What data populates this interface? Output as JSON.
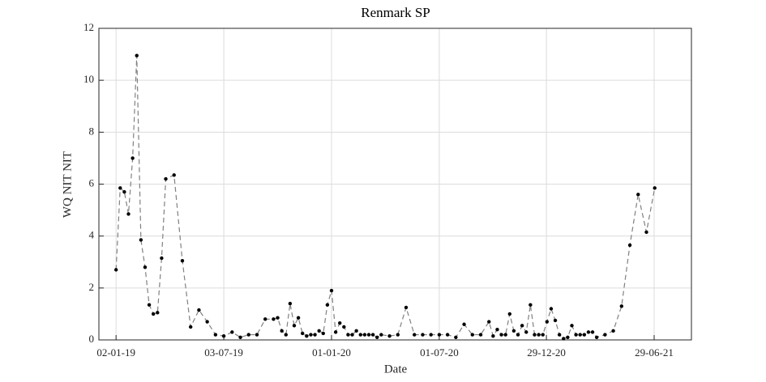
{
  "chart_data": {
    "type": "line",
    "title": "Renmark SP",
    "x_label": "Date",
    "y_label": "WQ NIT NIT",
    "x": [
      "02-01-19",
      "09-01-19",
      "16-01-19",
      "23-01-19",
      "30-01-19",
      "06-02-19",
      "13-02-19",
      "20-02-19",
      "27-02-19",
      "06-03-19",
      "13-03-19",
      "20-03-19",
      "27-03-19",
      "10-04-19",
      "24-04-19",
      "08-05-19",
      "22-05-19",
      "05-06-19",
      "19-06-19",
      "03-07-19",
      "17-07-19",
      "31-07-19",
      "14-08-19",
      "28-08-19",
      "11-09-19",
      "25-09-19",
      "02-10-19",
      "09-10-19",
      "16-10-19",
      "23-10-19",
      "30-10-19",
      "06-11-19",
      "13-11-19",
      "20-11-19",
      "27-11-19",
      "04-12-19",
      "11-12-19",
      "18-12-19",
      "25-12-19",
      "01-01-20",
      "08-01-20",
      "15-01-20",
      "22-01-20",
      "29-01-20",
      "05-02-20",
      "12-02-20",
      "19-02-20",
      "26-02-20",
      "04-03-20",
      "11-03-20",
      "18-03-20",
      "25-03-20",
      "08-04-20",
      "22-04-20",
      "06-05-20",
      "20-05-20",
      "03-06-20",
      "17-06-20",
      "01-07-20",
      "15-07-20",
      "29-07-20",
      "12-08-20",
      "26-08-20",
      "09-09-20",
      "23-09-20",
      "30-09-20",
      "07-10-20",
      "14-10-20",
      "21-10-20",
      "28-10-20",
      "04-11-20",
      "11-11-20",
      "18-11-20",
      "25-11-20",
      "02-12-20",
      "09-12-20",
      "16-12-20",
      "23-12-20",
      "30-12-20",
      "06-01-21",
      "13-01-21",
      "20-01-21",
      "27-01-21",
      "03-02-21",
      "10-02-21",
      "17-02-21",
      "24-02-21",
      "03-03-21",
      "10-03-21",
      "17-03-21",
      "24-03-21",
      "07-04-21",
      "21-04-21",
      "05-05-21",
      "19-05-21",
      "02-06-21",
      "16-06-21",
      "30-06-21"
    ],
    "series": [
      {
        "name": "WQ NIT NIT",
        "color": "#808080",
        "marker_color": "#000000",
        "values": [
          2.7,
          5.85,
          5.7,
          4.85,
          7.0,
          10.95,
          3.85,
          2.8,
          1.35,
          1.0,
          1.05,
          3.15,
          6.2,
          6.35,
          3.05,
          0.5,
          1.15,
          0.7,
          0.2,
          0.15,
          0.3,
          0.1,
          0.2,
          0.2,
          0.8,
          0.8,
          0.85,
          0.35,
          0.2,
          1.4,
          0.55,
          0.85,
          0.25,
          0.15,
          0.2,
          0.2,
          0.35,
          0.25,
          1.35,
          1.9,
          0.3,
          0.65,
          0.5,
          0.2,
          0.2,
          0.35,
          0.2,
          0.2,
          0.2,
          0.2,
          0.1,
          0.2,
          0.15,
          0.2,
          1.25,
          0.2,
          0.2,
          0.2,
          0.2,
          0.2,
          0.1,
          0.6,
          0.2,
          0.2,
          0.7,
          0.15,
          0.4,
          0.2,
          0.2,
          1.0,
          0.35,
          0.2,
          0.55,
          0.3,
          1.35,
          0.2,
          0.2,
          0.2,
          0.7,
          1.2,
          0.75,
          0.2,
          0.05,
          0.1,
          0.55,
          0.2,
          0.2,
          0.2,
          0.3,
          0.3,
          0.1,
          0.2,
          0.35,
          1.3,
          3.65,
          5.6,
          4.15,
          5.85
        ]
      }
    ],
    "xlim": [
      "04-12-18",
      "31-08-21"
    ],
    "xticks": [
      "02-01-19",
      "03-07-19",
      "01-01-20",
      "01-07-20",
      "29-12-20",
      "29-06-21"
    ],
    "ylim": [
      0,
      12
    ],
    "yticks": [
      0,
      2,
      4,
      6,
      8,
      10,
      12
    ],
    "grid": true
  }
}
